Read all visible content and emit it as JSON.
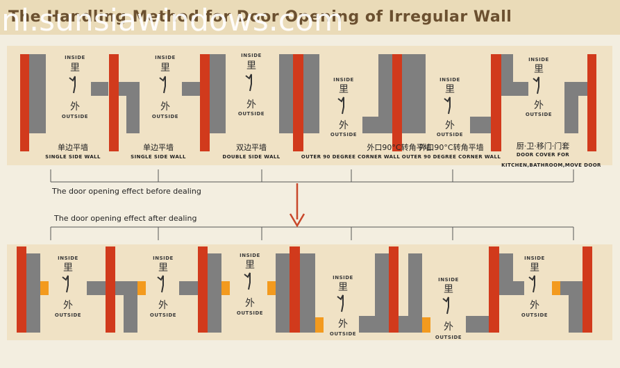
{
  "header": {
    "title": "The Handling Method for Door Opening of Irregular Wall",
    "watermark": "nl.sunsiawindows.com"
  },
  "labels": {
    "inside_en": "INSIDE",
    "inside_cn": "里",
    "outside_en": "OUTSIDE",
    "outside_cn": "外"
  },
  "sections": {
    "before": "The door opening effect before dealing",
    "after": "The door opening effect after dealing"
  },
  "cases": [
    {
      "cn": "单边平墙",
      "en": "SINGLE SIDE WALL"
    },
    {
      "cn": "单边平墙",
      "en": "SINGLE SIDE WALL"
    },
    {
      "cn": "双边平墙",
      "en": "DOUBLE SIDE WALL"
    },
    {
      "cn": "外口90°C转角平墙",
      "en": "OUTER 90 DEGREE CORNER WALL"
    },
    {
      "cn": "外口90°C转角平墙",
      "en": "OUTER 90 DEGREE CORNER WALL"
    },
    {
      "cn": "厨·卫·移门·门套",
      "en": "DOOR COVER FOR",
      "en2": "KITCHEN,BATHROOM,MOVE DOOR"
    }
  ],
  "colors": {
    "wall": "#7f7f7f",
    "frame": "#d13a1c",
    "insert": "#f39a1e",
    "arrow": "#c8472a",
    "line": "#555555"
  }
}
